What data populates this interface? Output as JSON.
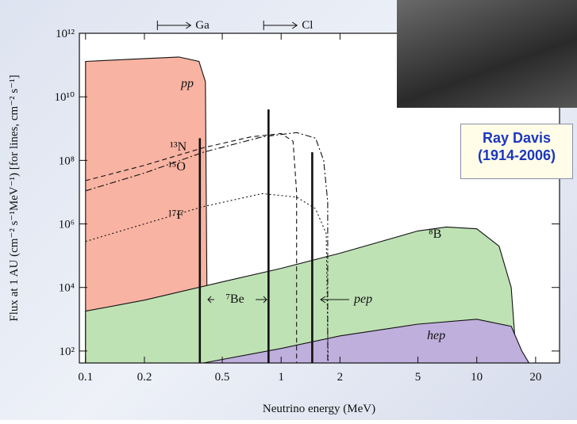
{
  "chart_data": {
    "type": "line",
    "x_label": "Neutrino energy (MeV)",
    "y_label": "Flux at 1 AU (cm⁻² s⁻¹MeV⁻¹) [for lines, cm⁻² s⁻¹]",
    "xlog": true,
    "ylog": true,
    "xlim": [
      0.093,
      26.5
    ],
    "ylim": [
      42,
      1000000000000.0
    ],
    "xticks": [
      0.1,
      0.2,
      0.5,
      1,
      2,
      5,
      10,
      20
    ],
    "yticks": [
      {
        "value": 100,
        "label": "10²"
      },
      {
        "value": 10000,
        "label": "10⁴"
      },
      {
        "value": 1000000,
        "label": "10⁶"
      },
      {
        "value": 100000000,
        "label": "10⁸"
      },
      {
        "value": 10000000000,
        "label": "10¹⁰"
      },
      {
        "value": 1000000000000,
        "label": "10¹²"
      }
    ],
    "series": [
      {
        "name": "pp",
        "color": "#f9b3a2",
        "fill": true,
        "style": "solid",
        "x": [
          0.1,
          0.2,
          0.3,
          0.38,
          0.41,
          0.42
        ],
        "values": [
          130000000000,
          160000000000,
          180000000000,
          130000000000,
          30000000000,
          42
        ]
      },
      {
        "name": "⁸B",
        "color": "#bfe2b5",
        "fill": true,
        "style": "solid",
        "x": [
          0.1,
          0.2,
          0.5,
          1,
          2,
          5,
          7,
          10,
          13,
          15,
          16
        ],
        "values": [
          1800,
          4000,
          15000,
          40000,
          120000,
          600000,
          800000,
          700000,
          200000,
          10000,
          42
        ]
      },
      {
        "name": "hep",
        "color": "#bfafdc",
        "fill": true,
        "style": "solid",
        "x": [
          0.4,
          1,
          2,
          5,
          10,
          15,
          17,
          18.5
        ],
        "values": [
          42,
          120,
          300,
          700,
          1000,
          600,
          100,
          42
        ]
      },
      {
        "name": "¹³N",
        "color": "#111111",
        "fill": false,
        "style": "dashed",
        "x": [
          0.1,
          0.2,
          0.4,
          0.7,
          1.0,
          1.15,
          1.2,
          1.2
        ],
        "values": [
          23000000,
          70000000,
          250000000,
          550000000,
          700000000,
          400000000,
          10000000,
          42
        ]
      },
      {
        "name": "¹⁵O",
        "color": "#111111",
        "fill": false,
        "style": "dashdot",
        "x": [
          0.1,
          0.2,
          0.4,
          0.8,
          1.2,
          1.5,
          1.65,
          1.73,
          1.73
        ],
        "values": [
          11000000,
          40000000,
          180000000,
          550000000,
          750000000,
          500000000,
          100000000,
          5000000,
          42
        ]
      },
      {
        "name": "¹⁷F",
        "color": "#111111",
        "fill": false,
        "style": "dotted",
        "x": [
          0.1,
          0.2,
          0.4,
          0.8,
          1.2,
          1.5,
          1.7,
          1.74
        ],
        "values": [
          280000,
          1000000,
          3500000,
          9000000,
          7000000,
          3000000,
          500000,
          42
        ]
      }
    ],
    "lines": [
      {
        "name": "⁷Be",
        "x": [
          0.384,
          0.862
        ],
        "values": [
          500000000,
          4000000000
        ]
      },
      {
        "name": "pep",
        "x": [
          1.442
        ],
        "values": [
          180000000
        ]
      }
    ],
    "thresholds": [
      {
        "label": "Ga",
        "x": 0.233
      },
      {
        "label": "Cl",
        "x": 0.814
      }
    ]
  },
  "photo_caption": [
    "Ray Davis",
    "(1914-2006)"
  ]
}
